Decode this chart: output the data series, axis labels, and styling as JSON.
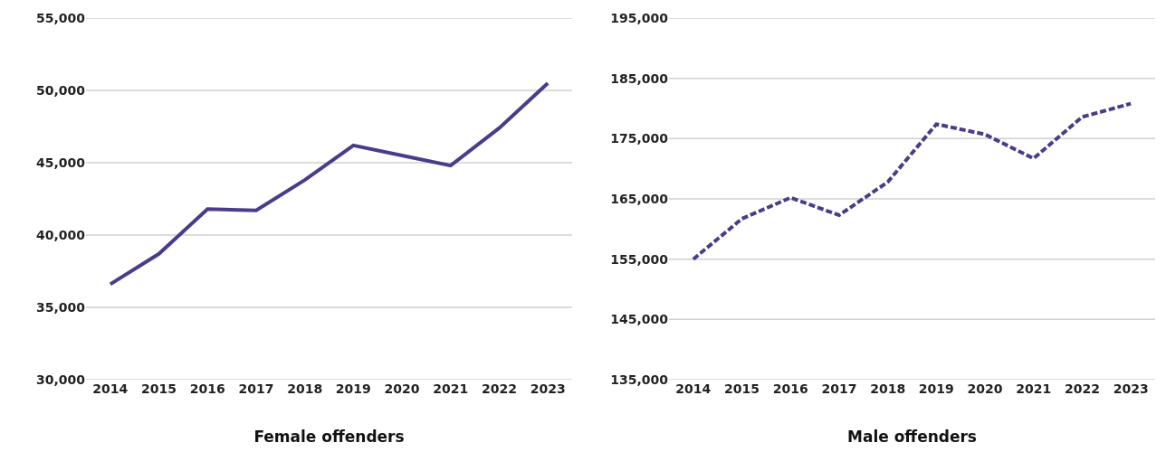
{
  "chart_data": [
    {
      "type": "line",
      "xlabel": "Female offenders",
      "categories": [
        "2014",
        "2015",
        "2016",
        "2017",
        "2018",
        "2019",
        "2020",
        "2021",
        "2022",
        "2023"
      ],
      "series": [
        {
          "color": "#4b3b8a",
          "line_style": "solid",
          "values": [
            36600,
            38700,
            41800,
            41700,
            43800,
            46200,
            45500,
            44800,
            47400,
            50500
          ]
        }
      ],
      "ylim": [
        30000,
        55000
      ],
      "yticks": [
        {
          "value": 30000,
          "label": "30,000"
        },
        {
          "value": 35000,
          "label": "35,000"
        },
        {
          "value": 40000,
          "label": "40,000"
        },
        {
          "value": 45000,
          "label": "45,000"
        },
        {
          "value": 50000,
          "label": "50,000"
        },
        {
          "value": 55000,
          "label": "55,000"
        }
      ],
      "grid": "y"
    },
    {
      "type": "line",
      "xlabel": "Male offenders",
      "categories": [
        "2014",
        "2015",
        "2016",
        "2017",
        "2018",
        "2019",
        "2020",
        "2021",
        "2022",
        "2023"
      ],
      "series": [
        {
          "color": "#4b3b8a",
          "line_style": "dashed",
          "values": [
            155000,
            161700,
            165200,
            162300,
            167800,
            177400,
            175700,
            171700,
            178600,
            180800
          ]
        }
      ],
      "ylim": [
        135000,
        195000
      ],
      "yticks": [
        {
          "value": 135000,
          "label": "135,000"
        },
        {
          "value": 145000,
          "label": "145,000"
        },
        {
          "value": 155000,
          "label": "155,000"
        },
        {
          "value": 165000,
          "label": "165,000"
        },
        {
          "value": 175000,
          "label": "175,000"
        },
        {
          "value": 185000,
          "label": "185,000"
        },
        {
          "value": 195000,
          "label": "195,000"
        }
      ],
      "grid": "y"
    }
  ]
}
